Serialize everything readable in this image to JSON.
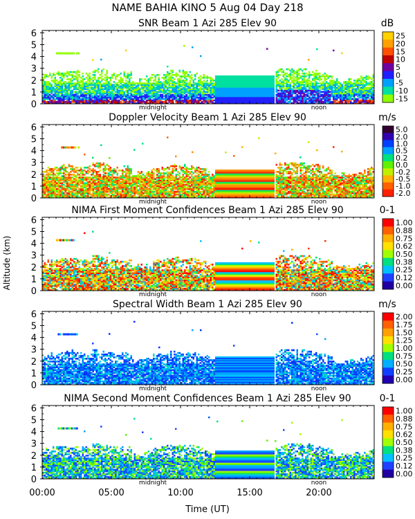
{
  "header": {
    "site_line": "NAME BAHIA KINO    5 Aug 04 Day 218"
  },
  "axes": {
    "ylabel": "Altitude (km)",
    "xlabel": "Time (UT)",
    "x_ticks": [
      "00:00",
      "05:00",
      "10:00",
      "15:00",
      "20:00"
    ],
    "x_tick_hours": [
      0,
      5,
      10,
      15,
      20
    ],
    "x_range_hours": [
      0,
      24
    ],
    "y_ticks": [
      "0",
      "1",
      "2",
      "3",
      "4",
      "5",
      "6"
    ],
    "y_range_km": [
      0,
      6.2
    ],
    "markers": [
      {
        "label": "midnight",
        "hour": 8.0
      },
      {
        "label": "noon",
        "hour": 20.0
      }
    ]
  },
  "chart_data": [
    {
      "type": "heatmap",
      "title": "SNR Beam 1 Azi 285 Elev 90",
      "units": "dB",
      "colorbar_labels": [
        "25",
        "20",
        "15",
        "10",
        "5",
        "0",
        "-5",
        "-10",
        "-15"
      ],
      "colorbar_colors": [
        "#ffd000",
        "#ffa000",
        "#ff5000",
        "#c00000",
        "#7000a0",
        "#2020ff",
        "#00a0ff",
        "#00e0a0",
        "#90ff00"
      ],
      "palette": [
        "#90ff00",
        "#00e0a0",
        "#00a0ff",
        "#2020ff",
        "#7000a0",
        "#c00000",
        "#ff5000",
        "#ffa000",
        "#ffd000"
      ],
      "style": "snr"
    },
    {
      "type": "heatmap",
      "title": "Doppler Velocity Beam 1 Azi 285 Elev 90",
      "units": "m/s",
      "colorbar_labels": [
        "5.0",
        "2.0",
        "1.0",
        "0.5",
        "0.2",
        "0.0",
        "-0.2",
        "-0.5",
        "-1.0",
        "-2.0"
      ],
      "colorbar_colors": [
        "#300030",
        "#3000b0",
        "#0040ff",
        "#00a0ff",
        "#00e080",
        "#60f000",
        "#c0f000",
        "#ffb000",
        "#ff6000",
        "#ff2000"
      ],
      "palette": [
        "#ff2000",
        "#ff6000",
        "#ff8a00",
        "#ffb000",
        "#c0f000",
        "#60f000",
        "#00e080"
      ],
      "style": "doppler"
    },
    {
      "type": "heatmap",
      "title": "NIMA First Moment Confidences Beam 1 Azi 285 Elev 90",
      "units": "0-1",
      "colorbar_labels": [
        "1.00",
        "0.88",
        "0.75",
        "0.62",
        "0.50",
        "0.38",
        "0.25",
        "0.12",
        "0.00"
      ],
      "colorbar_colors": [
        "#ff0000",
        "#ff6000",
        "#ffb000",
        "#ffe000",
        "#a0ff00",
        "#00e080",
        "#00c0ff",
        "#2040ff",
        "#2000a0"
      ],
      "palette": [
        "#ff0000",
        "#ff3000",
        "#ff6000",
        "#ffb000",
        "#ffe000",
        "#a0ff00",
        "#00e080",
        "#00c0ff"
      ],
      "style": "conf1"
    },
    {
      "type": "heatmap",
      "title": "Spectral Width Beam 1 Azi 285 Elev 90",
      "units": "m/s",
      "colorbar_labels": [
        "2.00",
        "1.75",
        "1.50",
        "1.25",
        "1.00",
        "0.75",
        "0.50",
        "0.25",
        "0.00"
      ],
      "colorbar_colors": [
        "#ff0000",
        "#ff6000",
        "#ffa000",
        "#ffe000",
        "#a0ff00",
        "#00e080",
        "#00b0ff",
        "#1040ff",
        "#2000b0"
      ],
      "palette": [
        "#0030ff",
        "#0050ff",
        "#0070ff",
        "#00a0ff",
        "#00c0ff",
        "#00e0c0",
        "#1040ff"
      ],
      "style": "width"
    },
    {
      "type": "heatmap",
      "title": "NIMA Second Moment Confidences Beam 1 Azi 285 Elev 90",
      "units": "0-1",
      "colorbar_labels": [
        "1.00",
        "0.88",
        "0.75",
        "0.62",
        "0.50",
        "0.38",
        "0.25",
        "0.12",
        "0.00"
      ],
      "colorbar_colors": [
        "#ff0000",
        "#ff6000",
        "#ffb000",
        "#ffe000",
        "#a0ff00",
        "#00e080",
        "#00c0ff",
        "#2040ff",
        "#2000a0"
      ],
      "palette": [
        "#2040ff",
        "#0060ff",
        "#00a0ff",
        "#00c0ff",
        "#00e080",
        "#60f000",
        "#a0ff00"
      ],
      "style": "conf2"
    }
  ]
}
